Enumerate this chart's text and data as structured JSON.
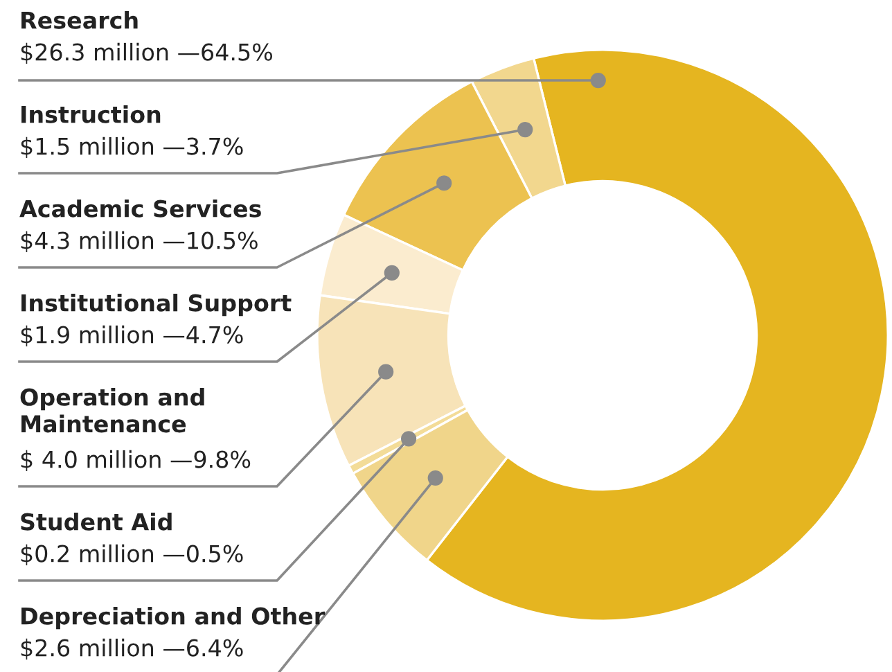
{
  "chart_data": {
    "type": "donut",
    "categories": [
      "Research",
      "Instruction",
      "Academic Services",
      "Institutional Support",
      "Operation and\nMaintenance",
      "Student Aid",
      "Depreciation and Other"
    ],
    "values": [
      64.5,
      3.7,
      10.5,
      4.7,
      9.8,
      0.5,
      6.4
    ],
    "colors": [
      "#e5b520",
      "#f2d78e",
      "#ecc250",
      "#fbeccf",
      "#f7e3b8",
      "#f3dc98",
      "#f0d58a"
    ],
    "value_labels": [
      "$26.3 million —64.5%",
      "$1.5 million —3.7%",
      "$4.3 million —10.5%",
      "$1.9 million —4.7%",
      "$ 4.0 million —9.8%",
      "$0.2 million —0.5%",
      "$2.6 million —6.4%"
    ]
  }
}
